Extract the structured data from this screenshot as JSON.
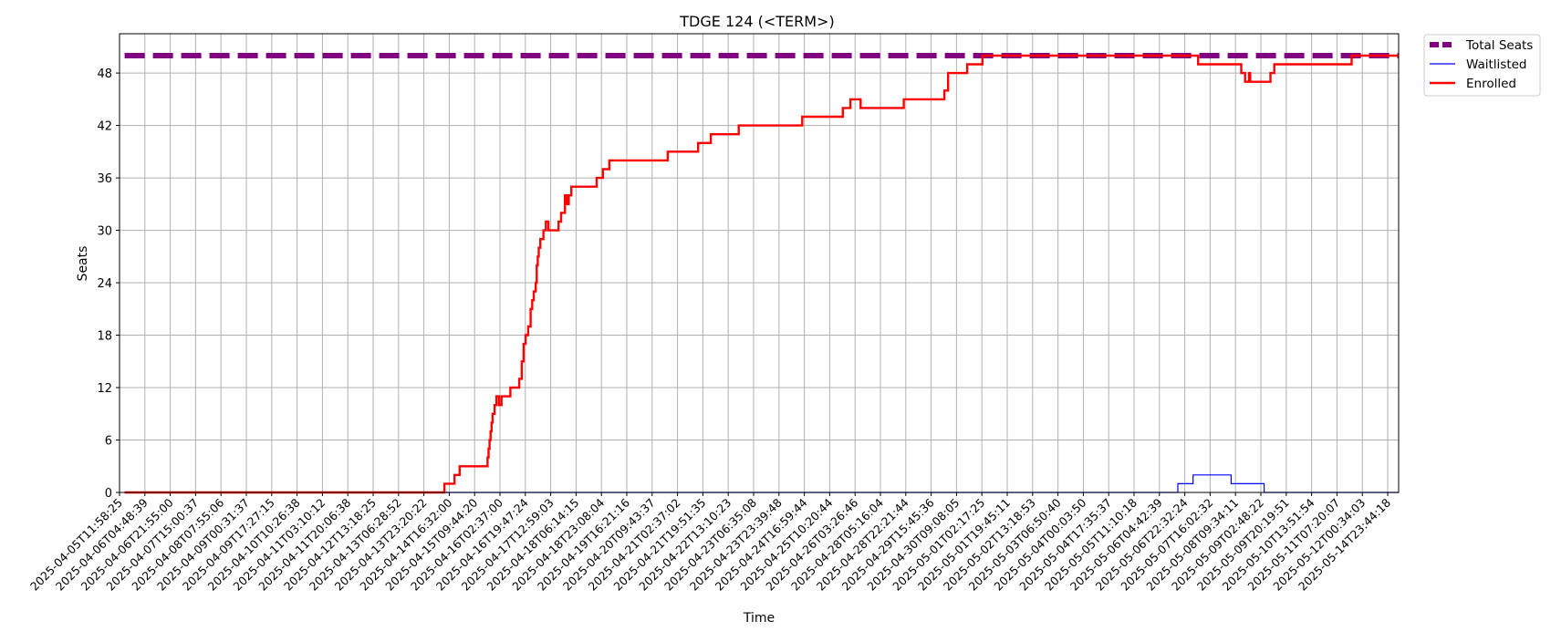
{
  "chart_data": {
    "type": "line",
    "title": "TDGE 124 (<TERM>)",
    "xlabel": "Time",
    "ylabel": "Seats",
    "ylim": [
      0,
      52.5
    ],
    "yticks": [
      0,
      6,
      12,
      18,
      24,
      30,
      36,
      42,
      48
    ],
    "grid": true,
    "legend_position": "outside-top-right",
    "x_tick_labels": [
      "2025-04-05T11:58:25",
      "2025-04-06T04:48:39",
      "2025-04-06T21:55:00",
      "2025-04-07T15:00:37",
      "2025-04-08T07:55:06",
      "2025-04-09T00:31:37",
      "2025-04-09T17:27:15",
      "2025-04-10T10:26:38",
      "2025-04-11T03:10:12",
      "2025-04-11T20:06:38",
      "2025-04-12T13:18:25",
      "2025-04-13T06:28:52",
      "2025-04-13T23:20:22",
      "2025-04-14T16:32:00",
      "2025-04-15T09:44:20",
      "2025-04-16T02:37:00",
      "2025-04-16T19:47:24",
      "2025-04-17T12:59:03",
      "2025-04-18T06:14:15",
      "2025-04-18T23:08:04",
      "2025-04-19T16:21:16",
      "2025-04-20T09:43:37",
      "2025-04-21T02:37:02",
      "2025-04-21T19:51:35",
      "2025-04-22T13:10:23",
      "2025-04-23T06:35:08",
      "2025-04-23T23:39:48",
      "2025-04-24T16:59:44",
      "2025-04-25T10:20:44",
      "2025-04-26T03:26:46",
      "2025-04-28T05:16:04",
      "2025-04-28T22:21:44",
      "2025-04-29T15:45:36",
      "2025-04-30T09:08:05",
      "2025-05-01T02:17:25",
      "2025-05-01T19:45:11",
      "2025-05-02T13:18:53",
      "2025-05-03T06:50:40",
      "2025-05-04T00:03:50",
      "2025-05-04T17:35:37",
      "2025-05-05T11:10:18",
      "2025-05-06T04:42:39",
      "2025-05-06T22:32:24",
      "2025-05-07T16:02:32",
      "2025-05-08T09:34:11",
      "2025-05-09T02:48:22",
      "2025-05-09T20:19:51",
      "2025-05-10T13:51:54",
      "2025-05-11T07:20:07",
      "2025-05-12T00:34:03",
      "2025-05-14T23:44:18"
    ],
    "series": [
      {
        "name": "Total Seats",
        "color": "#800080",
        "style": "dashed",
        "points": [
          [
            0,
            50
          ],
          [
            50.2,
            50
          ]
        ]
      },
      {
        "name": "Waitlisted",
        "color": "#0000ff",
        "style": "step",
        "points": [
          [
            0,
            0
          ],
          [
            41.5,
            0
          ],
          [
            41.5,
            1
          ],
          [
            42.1,
            1
          ],
          [
            42.1,
            2
          ],
          [
            43.6,
            2
          ],
          [
            43.6,
            1
          ],
          [
            44.9,
            1
          ],
          [
            44.9,
            0
          ],
          [
            50.2,
            0
          ]
        ]
      },
      {
        "name": "Enrolled",
        "color": "#ff0000",
        "style": "step",
        "points": [
          [
            0,
            0
          ],
          [
            12.6,
            0
          ],
          [
            12.6,
            1
          ],
          [
            13.0,
            1
          ],
          [
            13.0,
            2
          ],
          [
            13.2,
            2
          ],
          [
            13.2,
            3
          ],
          [
            14.3,
            3
          ],
          [
            14.3,
            4
          ],
          [
            14.34,
            4
          ],
          [
            14.34,
            5
          ],
          [
            14.38,
            5
          ],
          [
            14.38,
            6
          ],
          [
            14.42,
            6
          ],
          [
            14.42,
            7
          ],
          [
            14.46,
            7
          ],
          [
            14.46,
            8
          ],
          [
            14.5,
            8
          ],
          [
            14.5,
            9
          ],
          [
            14.58,
            9
          ],
          [
            14.58,
            10
          ],
          [
            14.65,
            10
          ],
          [
            14.65,
            11
          ],
          [
            14.75,
            11
          ],
          [
            14.75,
            10
          ],
          [
            14.85,
            10
          ],
          [
            14.85,
            11
          ],
          [
            15.2,
            11
          ],
          [
            15.2,
            12
          ],
          [
            15.55,
            12
          ],
          [
            15.55,
            13
          ],
          [
            15.65,
            13
          ],
          [
            15.65,
            15
          ],
          [
            15.72,
            15
          ],
          [
            15.72,
            17
          ],
          [
            15.8,
            17
          ],
          [
            15.8,
            18
          ],
          [
            15.9,
            18
          ],
          [
            15.9,
            19
          ],
          [
            16.0,
            19
          ],
          [
            16.0,
            21
          ],
          [
            16.06,
            21
          ],
          [
            16.06,
            22
          ],
          [
            16.12,
            22
          ],
          [
            16.12,
            23
          ],
          [
            16.2,
            23
          ],
          [
            16.2,
            24
          ],
          [
            16.24,
            24
          ],
          [
            16.24,
            26
          ],
          [
            16.28,
            26
          ],
          [
            16.28,
            27
          ],
          [
            16.32,
            27
          ],
          [
            16.32,
            28
          ],
          [
            16.38,
            28
          ],
          [
            16.38,
            29
          ],
          [
            16.5,
            29
          ],
          [
            16.5,
            30
          ],
          [
            16.6,
            30
          ],
          [
            16.6,
            31
          ],
          [
            16.7,
            31
          ],
          [
            16.7,
            30
          ],
          [
            17.1,
            30
          ],
          [
            17.1,
            31
          ],
          [
            17.2,
            31
          ],
          [
            17.2,
            32
          ],
          [
            17.35,
            32
          ],
          [
            17.35,
            34
          ],
          [
            17.42,
            34
          ],
          [
            17.42,
            33
          ],
          [
            17.5,
            33
          ],
          [
            17.5,
            34
          ],
          [
            17.6,
            34
          ],
          [
            17.6,
            35
          ],
          [
            18.6,
            35
          ],
          [
            18.6,
            36
          ],
          [
            18.85,
            36
          ],
          [
            18.85,
            37
          ],
          [
            19.1,
            37
          ],
          [
            19.1,
            38
          ],
          [
            21.4,
            38
          ],
          [
            21.4,
            39
          ],
          [
            22.6,
            39
          ],
          [
            22.6,
            40
          ],
          [
            23.1,
            40
          ],
          [
            23.1,
            41
          ],
          [
            24.2,
            41
          ],
          [
            24.2,
            42
          ],
          [
            26.7,
            42
          ],
          [
            26.7,
            43
          ],
          [
            28.3,
            43
          ],
          [
            28.3,
            44
          ],
          [
            28.6,
            44
          ],
          [
            28.6,
            45
          ],
          [
            29.0,
            45
          ],
          [
            29.0,
            44
          ],
          [
            30.7,
            44
          ],
          [
            30.7,
            45
          ],
          [
            32.3,
            45
          ],
          [
            32.3,
            46
          ],
          [
            32.45,
            46
          ],
          [
            32.45,
            48
          ],
          [
            33.2,
            48
          ],
          [
            33.2,
            49
          ],
          [
            33.8,
            49
          ],
          [
            33.8,
            50
          ],
          [
            42.3,
            50
          ],
          [
            42.3,
            49
          ],
          [
            44.0,
            49
          ],
          [
            44.0,
            48
          ],
          [
            44.15,
            48
          ],
          [
            44.15,
            47
          ],
          [
            44.3,
            47
          ],
          [
            44.3,
            48
          ],
          [
            44.35,
            48
          ],
          [
            44.35,
            47
          ],
          [
            45.15,
            47
          ],
          [
            45.15,
            48
          ],
          [
            45.3,
            48
          ],
          [
            45.3,
            49
          ],
          [
            48.35,
            49
          ],
          [
            48.35,
            50
          ],
          [
            50.2,
            50
          ]
        ]
      }
    ]
  }
}
